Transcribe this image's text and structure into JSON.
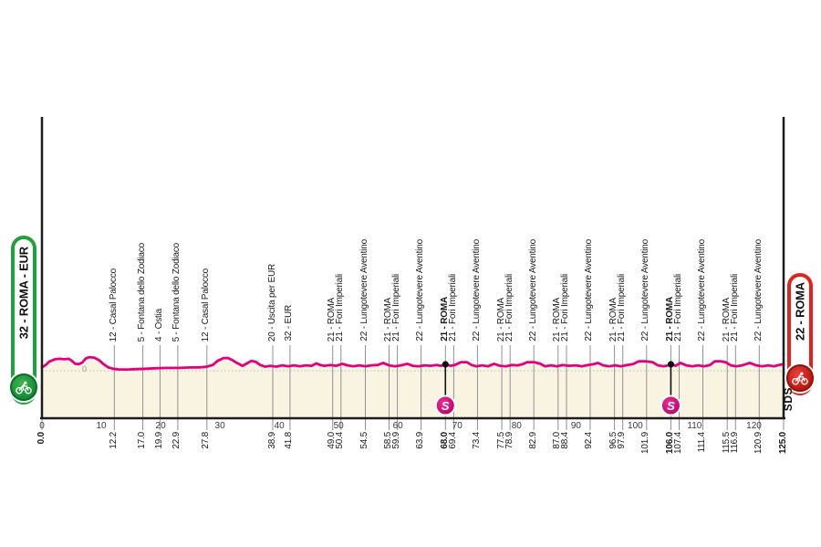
{
  "start_marker": {
    "label": "32 - ROMA - EUR",
    "color": "#1fa03c"
  },
  "finish_marker": {
    "label": "22 - ROMA",
    "color": "#e32219"
  },
  "branding": "SDS",
  "colors": {
    "profile_line": "#e4007d",
    "area_fill": "#f9f4e2",
    "gridline": "#909090",
    "axis": "#1c1c1c",
    "zero_dotted": "#bcbcbc",
    "sprint_fill": "#cc0074",
    "sprint_fill_light": "#ee2a96"
  },
  "chart_data": {
    "type": "area",
    "x_unit": "km",
    "x_range": [
      0,
      125
    ],
    "y_zero_label": "0",
    "axis_km_ticks": [
      0,
      10,
      20,
      30,
      40,
      50,
      60,
      70,
      80,
      90,
      100,
      110,
      120
    ],
    "sprints": [
      {
        "km": 68.0,
        "symbol": "S"
      },
      {
        "km": 106.0,
        "symbol": "S"
      }
    ],
    "waypoints": [
      {
        "km": 0.0,
        "name": null,
        "name_bold": false,
        "km_bold": true
      },
      {
        "km": 12.2,
        "name": "12 - Casal Palocco",
        "name_bold": false,
        "km_bold": false
      },
      {
        "km": 17.0,
        "name": "5 - Fontana dello Zodiaco",
        "name_bold": false,
        "km_bold": false
      },
      {
        "km": 19.9,
        "name": "4 - Ostia",
        "name_bold": false,
        "km_bold": false
      },
      {
        "km": 22.9,
        "name": "5 - Fontana dello Zodiaco",
        "name_bold": false,
        "km_bold": false
      },
      {
        "km": 27.8,
        "name": "12 - Casal Palocco",
        "name_bold": false,
        "km_bold": false
      },
      {
        "km": 38.9,
        "name": "20 - Uscita per EUR",
        "name_bold": false,
        "km_bold": false
      },
      {
        "km": 41.8,
        "name": "32 - EUR",
        "name_bold": false,
        "km_bold": false
      },
      {
        "km": 49.0,
        "name": "21 - ROMA",
        "name_bold": false,
        "km_bold": false
      },
      {
        "km": 50.4,
        "name": "21 - Fori Imperiali",
        "name_bold": false,
        "km_bold": false
      },
      {
        "km": 54.5,
        "name": "22 - Lungotevere Aventino",
        "name_bold": false,
        "km_bold": false
      },
      {
        "km": 58.5,
        "name": "21 - ROMA",
        "name_bold": false,
        "km_bold": false
      },
      {
        "km": 59.9,
        "name": "21 - Fori Imperiali",
        "name_bold": false,
        "km_bold": false
      },
      {
        "km": 63.9,
        "name": "22 - Lungotevere Aventino",
        "name_bold": false,
        "km_bold": false
      },
      {
        "km": 68.0,
        "name": "21 - ROMA",
        "name_bold": true,
        "km_bold": true
      },
      {
        "km": 69.4,
        "name": "21 - Fori Imperiali",
        "name_bold": false,
        "km_bold": false
      },
      {
        "km": 73.4,
        "name": "22 - Lungotevere Aventino",
        "name_bold": false,
        "km_bold": false
      },
      {
        "km": 77.5,
        "name": "21 - ROMA",
        "name_bold": false,
        "km_bold": false
      },
      {
        "km": 78.9,
        "name": "21 - Fori Imperiali",
        "name_bold": false,
        "km_bold": false
      },
      {
        "km": 82.9,
        "name": "22 - Lungotevere Aventino",
        "name_bold": false,
        "km_bold": false
      },
      {
        "km": 87.0,
        "name": "21 - ROMA",
        "name_bold": false,
        "km_bold": false
      },
      {
        "km": 88.4,
        "name": "21 - Fori Imperiali",
        "name_bold": false,
        "km_bold": false
      },
      {
        "km": 92.4,
        "name": "22 - Lungotevere Aventino",
        "name_bold": false,
        "km_bold": false
      },
      {
        "km": 96.5,
        "name": "21 - ROMA",
        "name_bold": false,
        "km_bold": false
      },
      {
        "km": 97.9,
        "name": "21 - Fori Imperiali",
        "name_bold": false,
        "km_bold": false
      },
      {
        "km": 101.9,
        "name": "22 - Lungotevere Aventino",
        "name_bold": false,
        "km_bold": false
      },
      {
        "km": 106.0,
        "name": "21 - ROMA",
        "name_bold": true,
        "km_bold": true
      },
      {
        "km": 107.4,
        "name": "21 - Fori Imperiali",
        "name_bold": false,
        "km_bold": false
      },
      {
        "km": 111.4,
        "name": "22 - Lungotevere Aventino",
        "name_bold": false,
        "km_bold": false
      },
      {
        "km": 115.5,
        "name": "21 - ROMA",
        "name_bold": false,
        "km_bold": false
      },
      {
        "km": 116.9,
        "name": "21 - Fori Imperiali",
        "name_bold": false,
        "km_bold": false
      },
      {
        "km": 120.9,
        "name": "22 - Lungotevere Aventino",
        "name_bold": false,
        "km_bold": false
      },
      {
        "km": 125.0,
        "name": null,
        "name_bold": false,
        "km_bold": true
      }
    ],
    "profile_km_elev_m": [
      [
        0,
        8
      ],
      [
        0.7,
        15
      ],
      [
        1.2,
        22
      ],
      [
        2.2,
        28
      ],
      [
        3,
        29
      ],
      [
        3.8,
        28
      ],
      [
        4.5,
        29
      ],
      [
        5,
        25
      ],
      [
        5.6,
        17
      ],
      [
        6.2,
        16
      ],
      [
        6.8,
        20
      ],
      [
        7.4,
        30
      ],
      [
        8,
        33
      ],
      [
        8.8,
        32
      ],
      [
        9.6,
        26
      ],
      [
        10.4,
        16
      ],
      [
        11.2,
        8
      ],
      [
        12,
        5
      ],
      [
        13,
        3
      ],
      [
        14.5,
        3
      ],
      [
        16,
        4
      ],
      [
        17.5,
        5
      ],
      [
        19,
        6
      ],
      [
        21,
        7
      ],
      [
        23,
        7
      ],
      [
        25,
        8
      ],
      [
        26.5,
        8
      ],
      [
        27.8,
        10
      ],
      [
        28.8,
        14
      ],
      [
        29.6,
        24
      ],
      [
        30.6,
        31
      ],
      [
        31.4,
        31
      ],
      [
        32.2,
        25
      ],
      [
        33,
        18
      ],
      [
        33.8,
        12
      ],
      [
        34.7,
        19
      ],
      [
        35.3,
        24
      ],
      [
        36,
        22
      ],
      [
        36.8,
        14
      ],
      [
        37.6,
        10
      ],
      [
        38.5,
        12
      ],
      [
        39.5,
        10
      ],
      [
        40.5,
        13
      ],
      [
        41.5,
        11
      ],
      [
        42.5,
        13
      ],
      [
        43.5,
        11
      ],
      [
        44.5,
        13
      ],
      [
        45.5,
        12
      ],
      [
        46.2,
        18
      ],
      [
        46.9,
        14
      ],
      [
        47.6,
        12
      ],
      [
        48.6,
        14
      ],
      [
        49.6,
        12
      ],
      [
        50.6,
        17
      ],
      [
        51.5,
        13
      ],
      [
        52.5,
        11
      ],
      [
        53.5,
        13
      ],
      [
        54.5,
        11
      ],
      [
        55.5,
        13
      ],
      [
        56.6,
        14
      ],
      [
        57.5,
        19
      ],
      [
        58.5,
        13
      ],
      [
        59.5,
        11
      ],
      [
        60.5,
        13
      ],
      [
        61.6,
        17
      ],
      [
        62.5,
        12
      ],
      [
        63.5,
        11
      ],
      [
        64.5,
        13
      ],
      [
        65.5,
        12
      ],
      [
        66.5,
        14
      ],
      [
        67.3,
        12
      ],
      [
        68,
        16
      ],
      [
        68.8,
        12
      ],
      [
        69.6,
        14
      ],
      [
        70.6,
        21
      ],
      [
        71.6,
        21
      ],
      [
        72.4,
        14
      ],
      [
        73.2,
        11
      ],
      [
        74.2,
        13
      ],
      [
        75.2,
        11
      ],
      [
        76.2,
        17
      ],
      [
        77.2,
        12
      ],
      [
        78.2,
        11
      ],
      [
        79.2,
        14
      ],
      [
        80.2,
        13
      ],
      [
        81,
        16
      ],
      [
        81.8,
        21
      ],
      [
        83,
        21
      ],
      [
        84,
        17
      ],
      [
        84.8,
        11
      ],
      [
        85.8,
        13
      ],
      [
        86.8,
        11
      ],
      [
        87.8,
        14
      ],
      [
        88.8,
        12
      ],
      [
        90,
        13
      ],
      [
        91,
        11
      ],
      [
        92,
        14
      ],
      [
        93,
        16
      ],
      [
        93.7,
        19
      ],
      [
        94.6,
        13
      ],
      [
        95.6,
        11
      ],
      [
        96.6,
        13
      ],
      [
        97.6,
        11
      ],
      [
        98.6,
        14
      ],
      [
        99.6,
        16
      ],
      [
        100.6,
        23
      ],
      [
        101.7,
        23
      ],
      [
        102.9,
        21
      ],
      [
        103.8,
        13
      ],
      [
        104.8,
        11
      ],
      [
        105.5,
        13
      ],
      [
        106,
        16
      ],
      [
        106.8,
        12
      ],
      [
        107.6,
        19
      ],
      [
        108.6,
        13
      ],
      [
        109.6,
        11
      ],
      [
        110.6,
        13
      ],
      [
        111.6,
        11
      ],
      [
        112.6,
        14
      ],
      [
        113.4,
        23
      ],
      [
        114.4,
        23
      ],
      [
        115.2,
        21
      ],
      [
        116.1,
        13
      ],
      [
        117,
        11
      ],
      [
        118,
        13
      ],
      [
        119.3,
        19
      ],
      [
        120.4,
        13
      ],
      [
        121.4,
        11
      ],
      [
        122.4,
        13
      ],
      [
        123.4,
        11
      ],
      [
        124.2,
        14
      ],
      [
        125,
        16
      ]
    ]
  }
}
